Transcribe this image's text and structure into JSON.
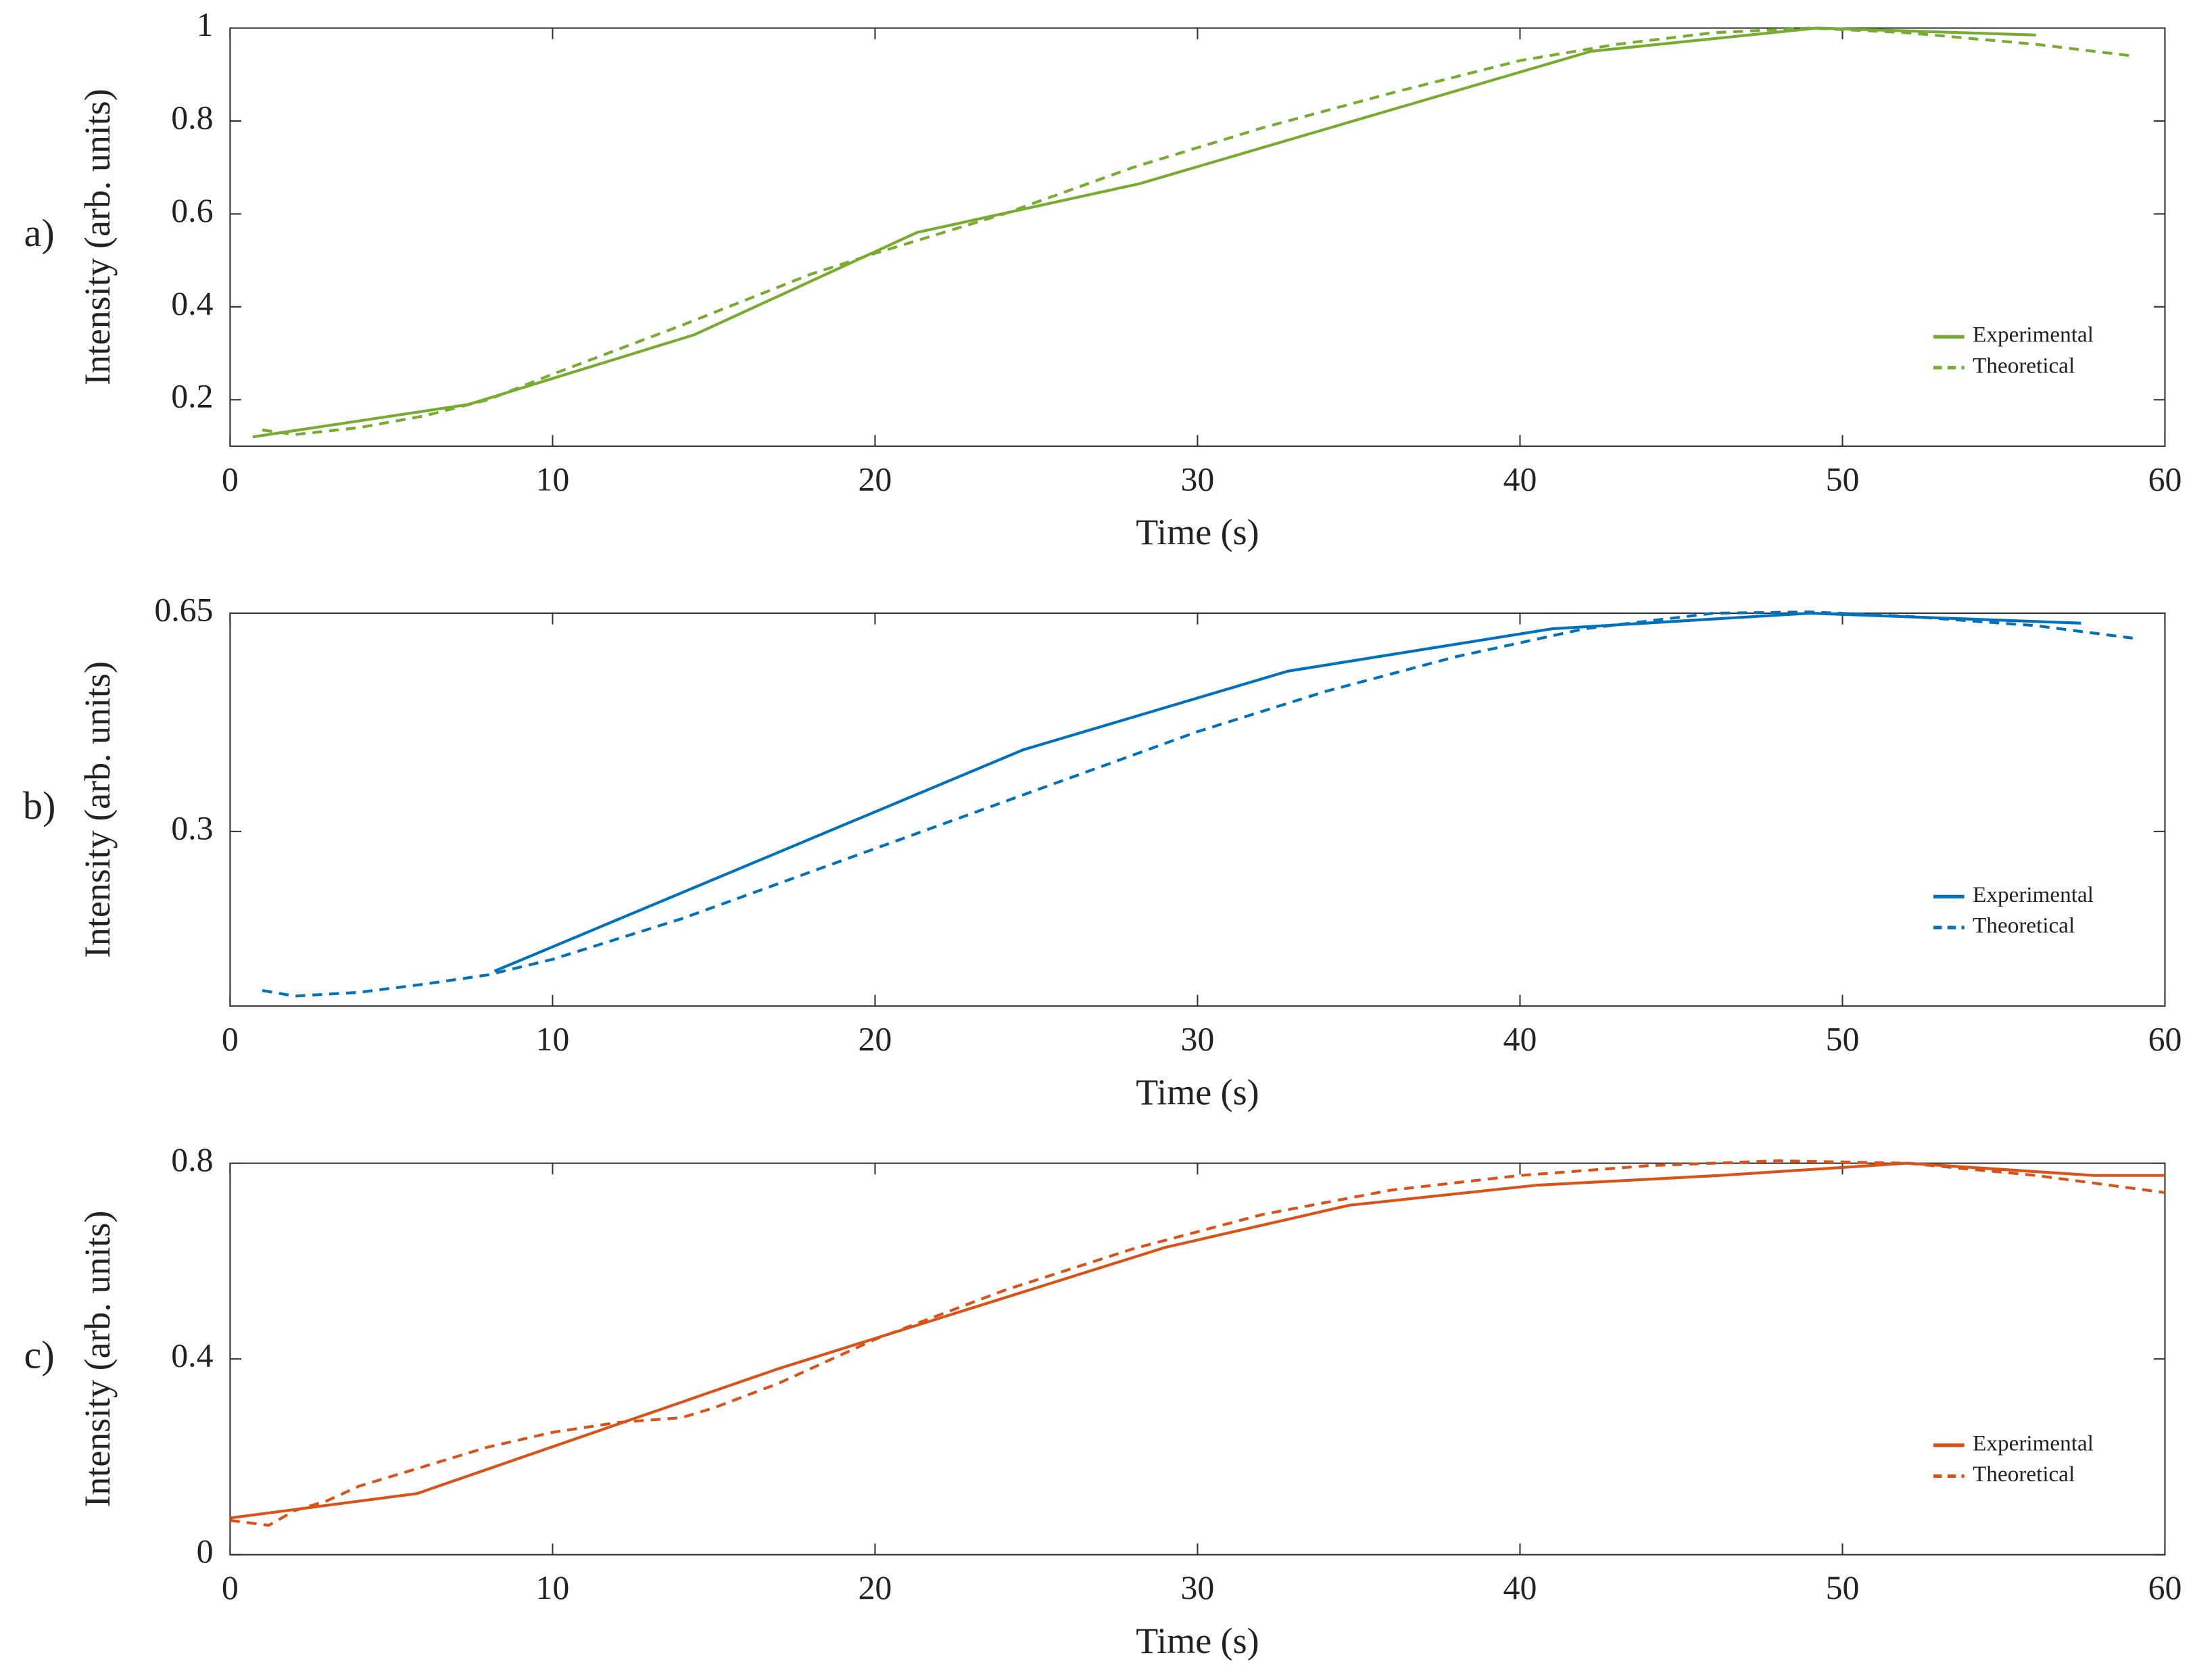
{
  "chart_data": [
    {
      "type": "line",
      "label": "a)",
      "xlabel": "Time (s)",
      "ylabel": "Intensity (arb. units)",
      "xlim": [
        0,
        60
      ],
      "ylim": [
        0.1,
        1
      ],
      "xticks": [
        0,
        10,
        20,
        30,
        40,
        50,
        60
      ],
      "yticks": [
        0.2,
        0.4,
        0.6,
        0.8,
        1
      ],
      "legend": "lower right",
      "series": [
        {
          "name": "Experimental",
          "color": "#77ac30",
          "linestyle": "solid",
          "x": [
            0.7,
            7.4,
            14.4,
            21.3,
            28.2,
            42.2,
            49.2,
            56
          ],
          "values": [
            0.12,
            0.19,
            0.34,
            0.56,
            0.665,
            0.95,
            1.0,
            0.985
          ]
        },
        {
          "name": "Theoretical",
          "color": "#77ac30",
          "linestyle": "dashed",
          "x": [
            1,
            2,
            4,
            6,
            8,
            10,
            14,
            18,
            20,
            24,
            28,
            32,
            36,
            40,
            43,
            46,
            49,
            52,
            56,
            59
          ],
          "values": [
            0.135,
            0.125,
            0.14,
            0.165,
            0.2,
            0.255,
            0.36,
            0.47,
            0.515,
            0.6,
            0.7,
            0.785,
            0.86,
            0.93,
            0.965,
            0.99,
            1.0,
            0.99,
            0.965,
            0.94
          ]
        }
      ]
    },
    {
      "type": "line",
      "label": "b)",
      "xlabel": "Time (s)",
      "ylabel": "Intensity (arb. units)",
      "xlim": [
        0,
        60
      ],
      "ylim": [
        0.02,
        0.65
      ],
      "xticks": [
        0,
        10,
        20,
        30,
        40,
        50,
        60
      ],
      "yticks": [
        0.3,
        0.65
      ],
      "legend": "lower right",
      "series": [
        {
          "name": "Experimental",
          "color": "#0072bd",
          "linestyle": "solid",
          "x": [
            8.2,
            24.6,
            32.8,
            41,
            49,
            57.4
          ],
          "values": [
            0.076,
            0.431,
            0.557,
            0.625,
            0.65,
            0.634
          ]
        },
        {
          "name": "Theoretical",
          "color": "#0072bd",
          "linestyle": "dashed",
          "x": [
            1,
            2,
            4,
            6,
            8,
            10,
            14,
            18,
            22,
            26,
            30,
            34,
            38,
            42,
            46,
            49,
            52,
            56,
            59
          ],
          "values": [
            0.045,
            0.036,
            0.042,
            0.055,
            0.07,
            0.095,
            0.16,
            0.235,
            0.31,
            0.385,
            0.46,
            0.525,
            0.58,
            0.625,
            0.65,
            0.652,
            0.645,
            0.63,
            0.61
          ]
        }
      ]
    },
    {
      "type": "line",
      "label": "c)",
      "xlabel": "Time (s)",
      "ylabel": "Intensity (arb. units)",
      "xlim": [
        0,
        60
      ],
      "ylim": [
        0,
        0.8
      ],
      "xticks": [
        0,
        10,
        20,
        30,
        40,
        50,
        60
      ],
      "yticks": [
        0,
        0.4,
        0.8
      ],
      "legend": "lower right",
      "series": [
        {
          "name": "Experimental",
          "color": "#d95319",
          "linestyle": "solid",
          "x": [
            0,
            5.8,
            17,
            29,
            34.7,
            40.5,
            46.2,
            52,
            57.8,
            60
          ],
          "values": [
            0.075,
            0.125,
            0.38,
            0.628,
            0.714,
            0.755,
            0.775,
            0.8,
            0.775,
            0.775
          ]
        },
        {
          "name": "Theoretical",
          "color": "#d95319",
          "linestyle": "dashed",
          "x": [
            0,
            1.2,
            2,
            3,
            4,
            6,
            8,
            10,
            12,
            14,
            15,
            17,
            20,
            24,
            28,
            32,
            36,
            40,
            44,
            48,
            52,
            56,
            60
          ],
          "values": [
            0.07,
            0.06,
            0.09,
            0.11,
            0.14,
            0.18,
            0.22,
            0.25,
            0.27,
            0.28,
            0.3,
            0.35,
            0.44,
            0.54,
            0.625,
            0.695,
            0.745,
            0.775,
            0.795,
            0.805,
            0.8,
            0.775,
            0.74
          ]
        }
      ]
    }
  ]
}
